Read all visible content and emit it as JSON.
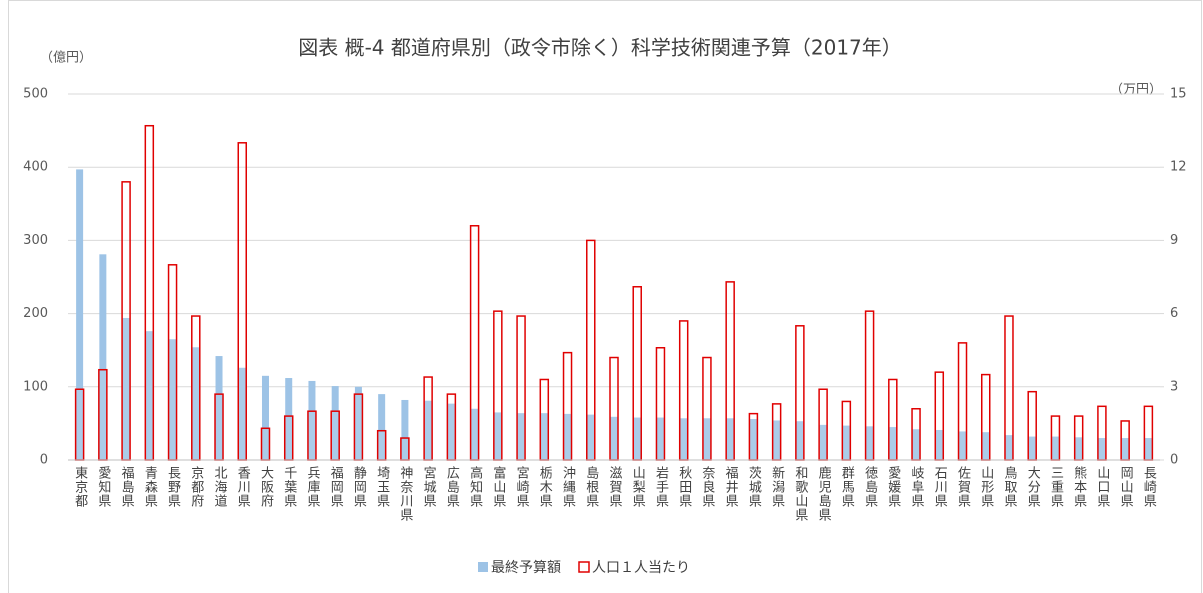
{
  "chart_data": {
    "type": "bar",
    "title": "図表 概-4 都道府県別（政令市除く）科学技術関連予算（2017年）",
    "y_label": "（億円）",
    "y2_label": "（万円）",
    "categories": [
      "東京都",
      "愛知県",
      "福島県",
      "青森県",
      "長野県",
      "京都府",
      "北海道",
      "香川県",
      "大阪府",
      "千葉県",
      "兵庫県",
      "福岡県",
      "静岡県",
      "埼玉県",
      "神奈川県",
      "宮城県",
      "広島県",
      "高知県",
      "富山県",
      "宮崎県",
      "栃木県",
      "沖縄県",
      "島根県",
      "滋賀県",
      "山梨県",
      "岩手県",
      "秋田県",
      "奈良県",
      "福井県",
      "茨城県",
      "新潟県",
      "和歌山県",
      "鹿児島県",
      "群馬県",
      "徳島県",
      "愛媛県",
      "岐阜県",
      "石川県",
      "佐賀県",
      "山形県",
      "鳥取県",
      "大分県",
      "三重県",
      "熊本県",
      "山口県",
      "岡山県",
      "長崎県"
    ],
    "series": [
      {
        "name": "最終予算額",
        "color": "#9dc3e6",
        "axis": "y",
        "values": [
          397,
          281,
          194,
          176,
          165,
          154,
          142,
          126,
          115,
          112,
          108,
          101,
          100,
          90,
          82,
          81,
          77,
          70,
          65,
          64,
          64,
          63,
          62,
          59,
          58,
          58,
          57,
          57,
          57,
          56,
          54,
          53,
          48,
          47,
          46,
          45,
          42,
          41,
          39,
          38,
          34,
          32,
          32,
          31,
          30,
          30,
          30
        ]
      },
      {
        "name": "人口１人当たり",
        "color": "#e00000",
        "axis": "y2",
        "values": [
          2.9,
          3.7,
          11.4,
          13.7,
          8.0,
          5.9,
          2.7,
          13.0,
          1.3,
          1.8,
          2.0,
          2.0,
          2.7,
          1.2,
          0.9,
          3.4,
          2.7,
          9.6,
          6.1,
          5.9,
          3.3,
          4.4,
          9.0,
          4.2,
          7.1,
          4.6,
          5.7,
          4.2,
          7.3,
          1.9,
          2.3,
          5.5,
          2.9,
          2.4,
          6.1,
          3.3,
          2.1,
          3.6,
          4.8,
          3.5,
          5.9,
          2.8,
          1.8,
          1.8,
          2.2,
          1.6,
          2.2
        ]
      }
    ],
    "ylim": [
      0,
      500
    ],
    "yticks": [
      0,
      100,
      200,
      300,
      400,
      500
    ],
    "y2lim": [
      0,
      15
    ],
    "y2ticks": [
      0,
      3,
      6,
      9,
      12,
      15
    ],
    "grid": true,
    "legend": "bottom"
  }
}
